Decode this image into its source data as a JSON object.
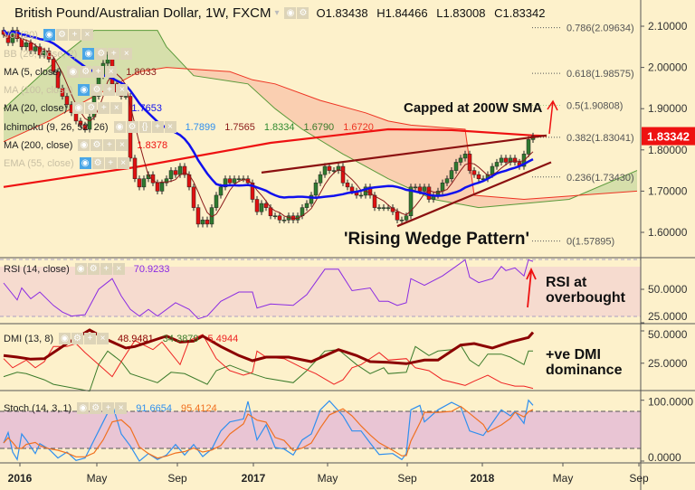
{
  "header": {
    "title": "British Pound/Australian Dollar, 1W, FXCM",
    "open": "O1.83438",
    "high": "H1.84466",
    "low": "L1.83008",
    "close": "C1.83342"
  },
  "legends": {
    "vol": {
      "label": "Vol (20)"
    },
    "bb": {
      "label": "BB (20, close, 2)"
    },
    "ma5": {
      "label": "MA (5, close)",
      "value": "1.8033"
    },
    "ma100": {
      "label": "MA (100, close)"
    },
    "ma20": {
      "label": "MA (20, close)",
      "value": "1.7653"
    },
    "ichimoku": {
      "label": "Ichimoku (9, 26, 52, 26)",
      "values": [
        "1.7899",
        "1.7565",
        "1.8334",
        "1.6790",
        "1.6720"
      ]
    },
    "ma200": {
      "label": "MA (200, close)",
      "value": "1.8378"
    },
    "ema55": {
      "label": "EMA (55, close)"
    },
    "rsi": {
      "label": "RSI (14, close)",
      "value": "70.9233"
    },
    "dmi": {
      "label": "DMI (13, 8)",
      "values": [
        "48.9481",
        "34.3879",
        "5.4944"
      ]
    },
    "stoch": {
      "label": "Stoch (14, 3, 1)",
      "values": [
        "91.6654",
        "95.4124"
      ]
    }
  },
  "annotations": {
    "capped": "Capped at 200W SMA",
    "wedge": "'Rising Wedge Pattern'",
    "rsi_note": [
      "RSI at",
      "overbought"
    ],
    "dmi_note": [
      "+ve DMI",
      "dominance"
    ]
  },
  "colors": {
    "background": "#fdf1cb",
    "up_candle": "#2f7a2f",
    "down_candle": "#e01010",
    "ma5": "#8b1a1a",
    "ma20": "#1010ee",
    "ma200": "#ee1111",
    "wedge": "#8b1010",
    "rsi": "#8a2be2",
    "adx": "#8b0000",
    "plus_di": "#3a7a2a",
    "minus_di": "#ee2222",
    "stoch_k": "#2f8fef",
    "stoch_d": "#f07020",
    "last_price": "#ee1111"
  },
  "chart_data": [
    {
      "type": "candlestick",
      "title": "British Pound/Australian Dollar, 1W, FXCM",
      "x_unit": "week index",
      "closes": [
        2.08,
        2.06,
        2.09,
        2.07,
        2.05,
        2.06,
        2.04,
        2.05,
        2.03,
        2.04,
        2.02,
        1.99,
        1.95,
        1.93,
        1.91,
        1.89,
        1.87,
        1.86,
        1.85,
        1.88,
        1.93,
        1.98,
        2.01,
        2.03,
        1.96,
        1.94,
        1.93,
        1.93,
        1.78,
        1.73,
        1.71,
        1.73,
        1.74,
        1.72,
        1.7,
        1.72,
        1.73,
        1.75,
        1.74,
        1.76,
        1.74,
        1.71,
        1.66,
        1.62,
        1.63,
        1.62,
        1.66,
        1.69,
        1.71,
        1.73,
        1.72,
        1.73,
        1.73,
        1.73,
        1.72,
        1.68,
        1.65,
        1.67,
        1.66,
        1.64,
        1.64,
        1.63,
        1.63,
        1.64,
        1.63,
        1.64,
        1.66,
        1.67,
        1.69,
        1.72,
        1.74,
        1.76,
        1.75,
        1.75,
        1.76,
        1.72,
        1.71,
        1.7,
        1.69,
        1.69,
        1.71,
        1.69,
        1.66,
        1.66,
        1.66,
        1.66,
        1.65,
        1.63,
        1.63,
        1.64,
        1.71,
        1.71,
        1.7,
        1.71,
        1.68,
        1.69,
        1.7,
        1.72,
        1.73,
        1.75,
        1.77,
        1.78,
        1.79,
        1.75,
        1.74,
        1.73,
        1.73,
        1.74,
        1.76,
        1.77,
        1.78,
        1.77,
        1.78,
        1.77,
        1.76,
        1.79,
        1.825,
        1.8334
      ],
      "last_price": "1.83342",
      "y_ticks": [
        "2.10000",
        "2.00000",
        "1.90000",
        "1.80000",
        "1.70000",
        "1.60000"
      ],
      "ylim": [
        1.55,
        2.16
      ],
      "sma200": [
        [
          0,
          1.71
        ],
        [
          29,
          1.758
        ],
        [
          59,
          1.817
        ],
        [
          85,
          1.85
        ],
        [
          99,
          1.848
        ],
        [
          117,
          1.835
        ],
        [
          120,
          1.834
        ]
      ],
      "ichimoku_span_a": [
        [
          0,
          1.9
        ],
        [
          12,
          2.02
        ],
        [
          20,
          2.09
        ],
        [
          34,
          2.09
        ],
        [
          36,
          2.05
        ],
        [
          42,
          1.98
        ],
        [
          54,
          1.96
        ],
        [
          60,
          1.9
        ],
        [
          66,
          1.85
        ],
        [
          75,
          1.79
        ],
        [
          85,
          1.73
        ],
        [
          95,
          1.68
        ],
        [
          105,
          1.66
        ],
        [
          115,
          1.67
        ],
        [
          125,
          1.68
        ],
        [
          140,
          1.75
        ]
      ],
      "ichimoku_span_b": [
        [
          0,
          1.82
        ],
        [
          10,
          1.87
        ],
        [
          20,
          1.93
        ],
        [
          30,
          1.99
        ],
        [
          36,
          2.0
        ],
        [
          50,
          1.99
        ],
        [
          55,
          1.97
        ],
        [
          60,
          1.96
        ],
        [
          70,
          1.92
        ],
        [
          80,
          1.89
        ],
        [
          85,
          1.87
        ],
        [
          90,
          1.86
        ],
        [
          102,
          1.85
        ],
        [
          104,
          1.69
        ],
        [
          115,
          1.68
        ],
        [
          140,
          1.7
        ]
      ],
      "wedge_upper": [
        [
          57,
          1.745
        ],
        [
          120,
          1.835
        ]
      ],
      "wedge_lower": [
        [
          87,
          1.615
        ],
        [
          121,
          1.77
        ]
      ],
      "fibonacci": [
        {
          "label": "0.786(2.09634)",
          "price": 2.09634
        },
        {
          "label": "0.618(1.98575)",
          "price": 1.98575
        },
        {
          "label": "0.5(1.90808)",
          "price": 1.90808
        },
        {
          "label": "0.382(1.83041)",
          "price": 1.83041
        },
        {
          "label": "0.236(1.73430)",
          "price": 1.7343
        },
        {
          "label": "0(1.57895)",
          "price": 1.57895
        }
      ]
    },
    {
      "type": "line",
      "name": "RSI (14, close)",
      "y_ticks": [
        "50.0000",
        "25.0000"
      ],
      "bands": [
        30,
        70
      ],
      "values": [
        [
          0,
          54.7
        ],
        [
          3,
          42
        ],
        [
          4,
          51
        ],
        [
          6,
          43
        ],
        [
          8,
          48
        ],
        [
          11,
          38
        ],
        [
          13,
          33
        ],
        [
          15,
          30
        ],
        [
          18,
          31
        ],
        [
          21,
          50
        ],
        [
          24,
          58
        ],
        [
          26,
          45
        ],
        [
          28,
          35
        ],
        [
          30,
          30
        ],
        [
          32,
          35
        ],
        [
          34,
          30
        ],
        [
          38,
          40
        ],
        [
          41,
          35
        ],
        [
          43,
          28
        ],
        [
          45,
          30
        ],
        [
          48,
          41
        ],
        [
          52,
          48
        ],
        [
          55,
          48
        ],
        [
          56,
          36
        ],
        [
          59,
          39
        ],
        [
          64,
          38
        ],
        [
          67,
          46
        ],
        [
          71,
          65
        ],
        [
          74,
          65
        ],
        [
          77,
          49
        ],
        [
          81,
          51
        ],
        [
          83,
          41
        ],
        [
          85,
          41
        ],
        [
          87,
          38
        ],
        [
          89,
          40
        ],
        [
          90,
          58
        ],
        [
          93,
          53
        ],
        [
          97,
          60
        ],
        [
          102,
          72
        ],
        [
          103,
          59
        ],
        [
          105,
          55
        ],
        [
          108,
          58
        ],
        [
          110,
          67
        ],
        [
          111,
          64
        ],
        [
          113,
          66
        ],
        [
          115,
          60
        ],
        [
          116,
          72
        ],
        [
          117,
          70.9
        ]
      ]
    },
    {
      "type": "line",
      "name": "DMI (13, 8)",
      "y_ticks": [
        "50.0000",
        "25.0000"
      ],
      "adx": [
        [
          0,
          30.9
        ],
        [
          3,
          29.7
        ],
        [
          6,
          28.1
        ],
        [
          9,
          28.5
        ],
        [
          14,
          40.2
        ],
        [
          19,
          50.7
        ],
        [
          23,
          43
        ],
        [
          27,
          36.7
        ],
        [
          29,
          37.9
        ],
        [
          34,
          43.7
        ],
        [
          36,
          46
        ],
        [
          39,
          41.4
        ],
        [
          42,
          42.1
        ],
        [
          44,
          46
        ],
        [
          48,
          37.9
        ],
        [
          52,
          30.9
        ],
        [
          55,
          26.9
        ],
        [
          58,
          29.7
        ],
        [
          63,
          29.7
        ],
        [
          68,
          26.2
        ],
        [
          74,
          35.5
        ],
        [
          78,
          30.9
        ],
        [
          81,
          26.2
        ],
        [
          85,
          25.7
        ],
        [
          89,
          24.6
        ],
        [
          93,
          27.4
        ],
        [
          96,
          27.4
        ],
        [
          101,
          39
        ],
        [
          104,
          40.2
        ],
        [
          108,
          36.7
        ],
        [
          112,
          41.4
        ],
        [
          116,
          44.9
        ],
        [
          117,
          48.9
        ]
      ],
      "plus_di": [
        [
          0,
          14.6
        ],
        [
          3,
          18
        ],
        [
          5,
          16.9
        ],
        [
          9,
          12.2
        ],
        [
          11,
          8.7
        ],
        [
          19,
          3.4
        ],
        [
          21,
          23.9
        ],
        [
          23,
          34.4
        ],
        [
          26,
          26.2
        ],
        [
          28,
          16.9
        ],
        [
          34,
          9.9
        ],
        [
          37,
          18
        ],
        [
          40,
          16.9
        ],
        [
          45,
          8.7
        ],
        [
          47,
          19.2
        ],
        [
          50,
          23.4
        ],
        [
          54,
          18
        ],
        [
          58,
          13.4
        ],
        [
          64,
          9.9
        ],
        [
          67,
          19.2
        ],
        [
          71,
          34.4
        ],
        [
          74,
          35.5
        ],
        [
          78,
          23.9
        ],
        [
          81,
          16.9
        ],
        [
          84,
          21.5
        ],
        [
          85,
          16.9
        ],
        [
          89,
          18
        ],
        [
          91,
          37.9
        ],
        [
          94,
          30.9
        ],
        [
          96,
          34.4
        ],
        [
          99,
          35.5
        ],
        [
          101,
          39
        ],
        [
          103,
          27.4
        ],
        [
          105,
          22.7
        ],
        [
          107,
          32
        ],
        [
          110,
          32
        ],
        [
          112,
          29.7
        ],
        [
          115,
          23.9
        ],
        [
          116,
          34.4
        ],
        [
          117,
          34.4
        ]
      ],
      "minus_di": [
        [
          0,
          28.5
        ],
        [
          2,
          21.5
        ],
        [
          5,
          27.4
        ],
        [
          7,
          21.5
        ],
        [
          9,
          26.2
        ],
        [
          11,
          37.9
        ],
        [
          14,
          37.9
        ],
        [
          16,
          40.2
        ],
        [
          18,
          33.2
        ],
        [
          21,
          23.9
        ],
        [
          24,
          14.6
        ],
        [
          26,
          26.2
        ],
        [
          29,
          42.5
        ],
        [
          33,
          35.5
        ],
        [
          35,
          41.4
        ],
        [
          39,
          23.9
        ],
        [
          41,
          42.5
        ],
        [
          44,
          47.2
        ],
        [
          47,
          28.5
        ],
        [
          50,
          19.2
        ],
        [
          53,
          15.7
        ],
        [
          55,
          18
        ],
        [
          56,
          34.4
        ],
        [
          58,
          29.7
        ],
        [
          62,
          28.5
        ],
        [
          66,
          21.5
        ],
        [
          69,
          16.9
        ],
        [
          73,
          8.7
        ],
        [
          75,
          12.2
        ],
        [
          77,
          21.5
        ],
        [
          79,
          23.9
        ],
        [
          83,
          33.2
        ],
        [
          85,
          27.4
        ],
        [
          89,
          28.5
        ],
        [
          91,
          21.5
        ],
        [
          94,
          19.2
        ],
        [
          97,
          12.2
        ],
        [
          102,
          7.8
        ],
        [
          104,
          11.1
        ],
        [
          107,
          15.7
        ],
        [
          110,
          9.9
        ],
        [
          113,
          7.3
        ],
        [
          115,
          7.3
        ],
        [
          117,
          5.5
        ]
      ]
    },
    {
      "type": "line",
      "name": "Stoch (14, 3, 1)",
      "y_ticks": [
        "100.0000",
        "0.0000"
      ],
      "bands": [
        20,
        80
      ],
      "k": [
        [
          0,
          29.7
        ],
        [
          1,
          47
        ],
        [
          2,
          14.9
        ],
        [
          3,
          2.5
        ],
        [
          4,
          44.6
        ],
        [
          5,
          34.7
        ],
        [
          7,
          12.4
        ],
        [
          8,
          28.7
        ],
        [
          10,
          19.8
        ],
        [
          12,
          5
        ],
        [
          14,
          14.9
        ],
        [
          16,
          1
        ],
        [
          18,
          5
        ],
        [
          20,
          34.7
        ],
        [
          22,
          64.4
        ],
        [
          24,
          94.1
        ],
        [
          26,
          44.6
        ],
        [
          28,
          24.8
        ],
        [
          30,
          0
        ],
        [
          32,
          12.4
        ],
        [
          34,
          2.5
        ],
        [
          36,
          9.9
        ],
        [
          38,
          27.2
        ],
        [
          40,
          9.9
        ],
        [
          42,
          27.2
        ],
        [
          44,
          7.4
        ],
        [
          46,
          19.8
        ],
        [
          48,
          49.5
        ],
        [
          50,
          64.4
        ],
        [
          53,
          69.3
        ],
        [
          54,
          98
        ],
        [
          56,
          34.7
        ],
        [
          58,
          59.4
        ],
        [
          60,
          22.3
        ],
        [
          62,
          19.8
        ],
        [
          64,
          9.9
        ],
        [
          66,
          34.7
        ],
        [
          68,
          44.6
        ],
        [
          70,
          84.2
        ],
        [
          72,
          99
        ],
        [
          75,
          74.3
        ],
        [
          77,
          49.5
        ],
        [
          79,
          49.5
        ],
        [
          81,
          29.7
        ],
        [
          83,
          10.9
        ],
        [
          86,
          12.4
        ],
        [
          88,
          2.5
        ],
        [
          89,
          12.4
        ],
        [
          90,
          84.2
        ],
        [
          92,
          91.6
        ],
        [
          93,
          64.4
        ],
        [
          96,
          84.2
        ],
        [
          99,
          96.5
        ],
        [
          101,
          89.1
        ],
        [
          103,
          49.5
        ],
        [
          106,
          42.1
        ],
        [
          107,
          52
        ],
        [
          110,
          84.2
        ],
        [
          112,
          74.3
        ],
        [
          113,
          81.7
        ],
        [
          115,
          61.9
        ],
        [
          116,
          100
        ],
        [
          117,
          91.7
        ]
      ]
    }
  ],
  "x_ticks": [
    {
      "label": "2016",
      "week": 3.6,
      "bold": true
    },
    {
      "label": "May",
      "week": 20.6,
      "bold": false
    },
    {
      "label": "Sep",
      "week": 38.4,
      "bold": false
    },
    {
      "label": "2017",
      "week": 55.2,
      "bold": true
    },
    {
      "label": "May",
      "week": 71.6,
      "bold": false
    },
    {
      "label": "Sep",
      "week": 89.2,
      "bold": false
    },
    {
      "label": "2018",
      "week": 105.8,
      "bold": true
    },
    {
      "label": "May",
      "week": 123.6,
      "bold": false
    },
    {
      "label": "Sep",
      "week": 140.4,
      "bold": false
    }
  ]
}
